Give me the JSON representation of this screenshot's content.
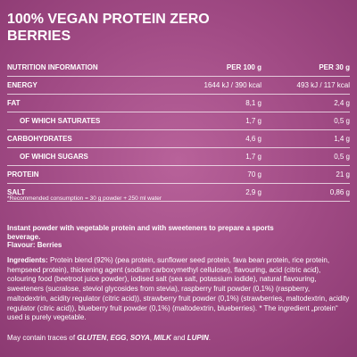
{
  "header": {
    "title": "100% VEGAN PROTEIN ZERO BERRIES"
  },
  "table": {
    "columns": [
      "NUTRITION INFORMATION",
      "PER 100 g",
      "PER 30 g"
    ],
    "rows": [
      [
        "ENERGY",
        "1644 kJ / 390 kcal",
        "493 kJ / 117 kcal"
      ],
      [
        "FAT",
        "8,1 g",
        "2,4 g"
      ],
      [
        "OF WHICH SATURATES",
        "1,7 g",
        "0,5 g"
      ],
      [
        "CARBOHYDRATES",
        "4,6 g",
        "1,4 g"
      ],
      [
        "OF WHICH SUGARS",
        "1,7 g",
        "0,5 g"
      ],
      [
        "PROTEIN",
        "70 g",
        "21 g"
      ],
      [
        "SALT",
        "2,9 g",
        "0,86 g"
      ]
    ],
    "indented": [
      false,
      false,
      true,
      false,
      true,
      false,
      false
    ],
    "footnote": "*Recommended consumption = 30 g powder + 250 ml water"
  },
  "description": "Instant powder with vegetable protein and with sweeteners to prepare a sports beverage.",
  "flavour": "Flavour: Berries",
  "ingredients": [
    {
      "text": "Ingredients:",
      "bold": true
    },
    {
      "text": " Protein blend (92%) (pea protein, sunflower seed protein, fava bean protein, rice protein, hempseed protein), thickening agent (sodium carboxymethyl cellulose), flavouring, acid (citric acid), colouring food (beetroot juice powder), iodised salt (sea salt, potassium iodide), natural flavouring, sweeteners (sucralose, steviol glycosides from stevia), raspberry fruit powder (0,1%) (raspberry, maltodextrin, acidity regulator (citric acid)), strawberry fruit powder (0,1%) (strawberries, maltodextrin, acidity regulator (citric acid)), blueberry fruit powder (0,1%) (maltodextrin, blueberries). * The ingredient „protein“ used is purely vegetable.",
      "bold": false
    }
  ],
  "allergens": [
    {
      "text": "May contain traces of ",
      "bold": false
    },
    {
      "text": "GLUTEN",
      "bold": true
    },
    {
      "text": ", ",
      "bold": false
    },
    {
      "text": "EGG",
      "bold": true
    },
    {
      "text": ", ",
      "bold": false
    },
    {
      "text": "SOYA",
      "bold": true
    },
    {
      "text": ", ",
      "bold": false
    },
    {
      "text": "MILK",
      "bold": true
    },
    {
      "text": " and ",
      "bold": false
    },
    {
      "text": "LUPIN",
      "bold": true
    },
    {
      "text": ".",
      "bold": false
    }
  ]
}
